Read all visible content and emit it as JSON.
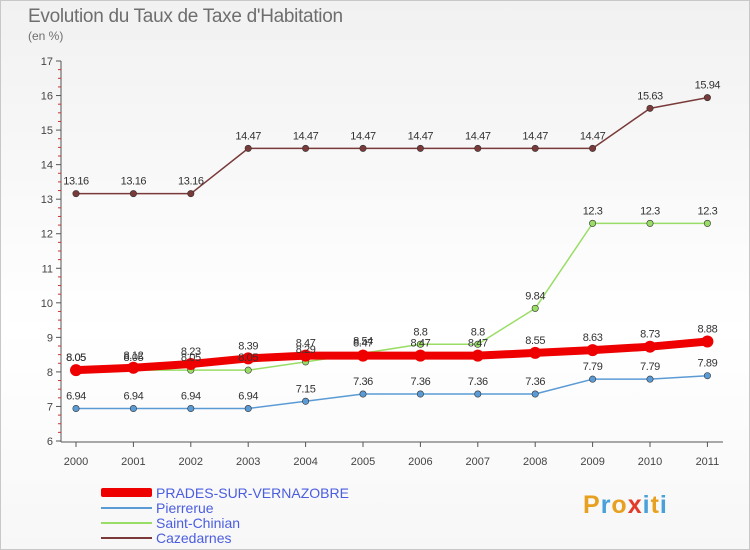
{
  "chart_data": {
    "type": "line",
    "title": "Evolution du Taux de Taxe d'Habitation",
    "subtitle": "(en %)",
    "categories": [
      "2000",
      "2001",
      "2002",
      "2003",
      "2004",
      "2005",
      "2006",
      "2007",
      "2008",
      "2009",
      "2010",
      "2011"
    ],
    "ylim": [
      6,
      17
    ],
    "yticks": [
      6,
      7,
      8,
      9,
      10,
      11,
      12,
      13,
      14,
      15,
      16,
      17
    ],
    "grid": false,
    "legend_position": "bottom-left",
    "series": [
      {
        "name": "PRADES-SUR-VERNAZOBRE",
        "color": "#ee0000",
        "values": [
          8.05,
          8.12,
          8.23,
          8.39,
          8.47,
          8.47,
          8.47,
          8.47,
          8.55,
          8.63,
          8.73,
          8.88
        ],
        "labels": [
          "8.05",
          "8.12",
          "8.23",
          "8.39",
          "8.47",
          "8.47",
          "8.47",
          "8.47",
          "8.55",
          "8.63",
          "8.73",
          "8.88"
        ]
      },
      {
        "name": "Pierrerue",
        "color": "#5b9bd5",
        "values": [
          6.94,
          6.94,
          6.94,
          6.94,
          7.15,
          7.36,
          7.36,
          7.36,
          7.36,
          7.79,
          7.79,
          7.89
        ],
        "labels": [
          "6.94",
          "6.94",
          "6.94",
          "6.94",
          "7.15",
          "7.36",
          "7.36",
          "7.36",
          "7.36",
          "7.79",
          "7.79",
          "7.89"
        ]
      },
      {
        "name": "Saint-Chinian",
        "color": "#99dd66",
        "values": [
          8.05,
          8.05,
          8.05,
          8.05,
          8.29,
          8.54,
          8.8,
          8.8,
          9.84,
          12.3,
          12.3,
          12.3
        ],
        "labels": [
          "8.05",
          "8.05",
          "8.05",
          "8.05",
          "8.29",
          "8.54",
          "8.8",
          "8.8",
          "9.84",
          "12.3",
          "12.3",
          "12.3"
        ]
      },
      {
        "name": "Cazedarnes",
        "color": "#7a3a3a",
        "values": [
          13.16,
          13.16,
          13.16,
          14.47,
          14.47,
          14.47,
          14.47,
          14.47,
          14.47,
          14.47,
          15.63,
          15.94
        ],
        "labels": [
          "13.16",
          "13.16",
          "13.16",
          "14.47",
          "14.47",
          "14.47",
          "14.47",
          "14.47",
          "14.47",
          "14.47",
          "15.63",
          "15.94"
        ]
      }
    ]
  },
  "logo": {
    "text": "Proxiti",
    "colors": [
      "#e8a020",
      "#4aa0d8",
      "#e8a020",
      "#e33a2a",
      "#4aa0d8",
      "#e8a020",
      "#4aa0d8"
    ]
  }
}
